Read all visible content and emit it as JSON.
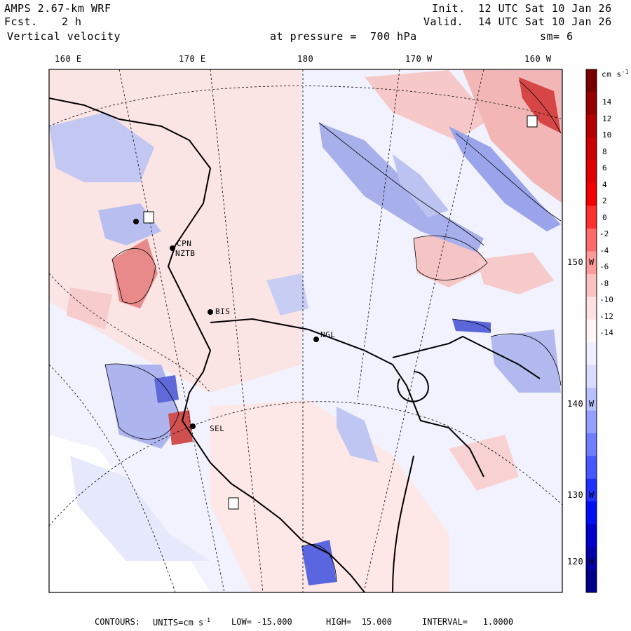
{
  "header": {
    "model": "AMPS 2.67-km WRF",
    "forecast_label": "Fcst.",
    "forecast_value": "2 h",
    "variable": "Vertical velocity",
    "init_label": "Init.",
    "init_time": "12 UTC Sat 10 Jan 26",
    "valid_label": "Valid.",
    "valid_time": "14 UTC Sat 10 Jan 26",
    "pressure_text": "at pressure =  700 hPa",
    "smoothing": "sm= 6"
  },
  "longitude_labels": [
    "160 E",
    "170 E",
    "180",
    "170 W",
    "160 W"
  ],
  "latitude_labels": [
    "150 W",
    "140 W",
    "130 W",
    "120 W"
  ],
  "stations": [
    "BIS",
    "NGL",
    "SEL",
    "CPN",
    "NZTB"
  ],
  "colorbar": {
    "units": "cm s",
    "units_exp": "-1",
    "ticks": [
      "14",
      "12",
      "10",
      "8",
      "6",
      "4",
      "2",
      "0",
      "-2",
      "-4",
      "-6",
      "-8",
      "-10",
      "-12",
      "-14"
    ],
    "colors": [
      "#7a0000",
      "#960000",
      "#b30000",
      "#cc0000",
      "#e00000",
      "#f20000",
      "#ff3030",
      "#ff6a6a",
      "#ff9a9a",
      "#ffc2c2",
      "#ffe1e1",
      "#fff5f5",
      "#eef0ff",
      "#d8dcff",
      "#b8c0ff",
      "#959fff",
      "#6f7dff",
      "#4857ff",
      "#1f30ff",
      "#0010f0",
      "#0000cc",
      "#0000a8",
      "#000088"
    ]
  },
  "footer": {
    "contours_label": "CONTOURS:",
    "units_label": "UNITS=cm s",
    "units_exp": "-1",
    "low": "LOW= -15.000",
    "high": "HIGH=  15.000",
    "interval": "INTERVAL=   1.0000"
  },
  "colors": {
    "positive": "#f4c2c2",
    "negative": "#c6ccf0",
    "coast": "#000000"
  }
}
